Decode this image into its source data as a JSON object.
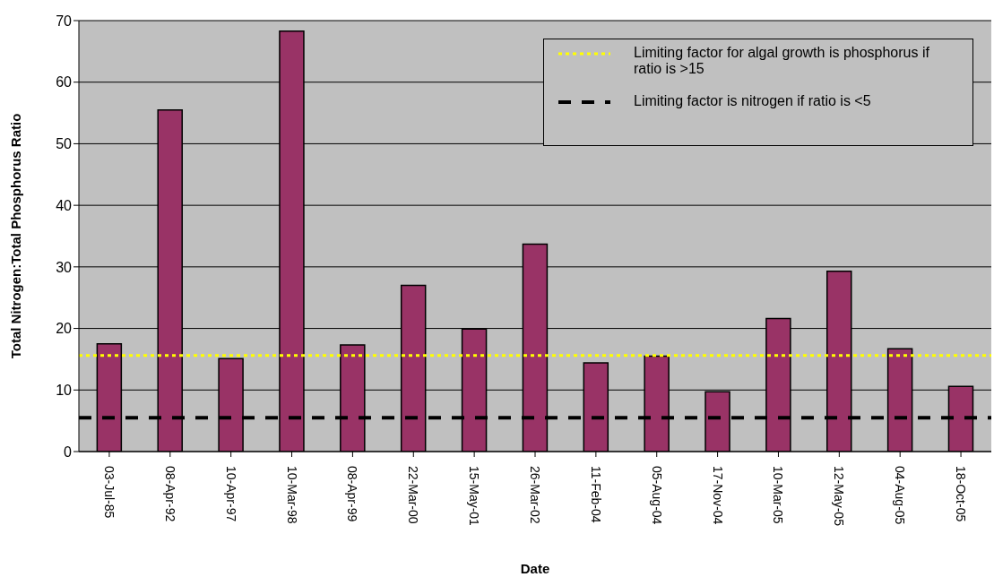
{
  "chart_data": {
    "type": "bar",
    "xlabel": "Date",
    "ylabel": "Total Nitrogen:Total Phosphorus Ratio",
    "categories": [
      "03-Jul-85",
      "08-Apr-92",
      "10-Apr-97",
      "10-Mar-98",
      "08-Apr-99",
      "22-Mar-00",
      "15-May-01",
      "26-Mar-02",
      "11-Feb-04",
      "05-Aug-04",
      "17-Nov-04",
      "10-Mar-05",
      "12-May-05",
      "04-Aug-05",
      "18-Oct-05"
    ],
    "values": [
      17.5,
      55.5,
      15.1,
      68.3,
      17.3,
      27.0,
      19.9,
      33.7,
      14.4,
      15.5,
      9.7,
      21.6,
      29.3,
      16.7,
      10.6
    ],
    "color": "#993366",
    "ylim": [
      0,
      70
    ],
    "yticks": [
      0,
      10,
      20,
      30,
      40,
      50,
      60,
      70
    ],
    "grid": "y",
    "legend": "top right",
    "ref_lines": [
      {
        "axis": "y",
        "value": 15.6,
        "label": "Limiting factor for algal growth is phosphorus if ratio is >15",
        "color": "#ffff00",
        "line_style": "dotted"
      },
      {
        "axis": "y",
        "value": 5.5,
        "label": "Limiting factor is nitrogen if ratio is <5",
        "color": "#000000",
        "line_style": "dashed"
      }
    ]
  }
}
